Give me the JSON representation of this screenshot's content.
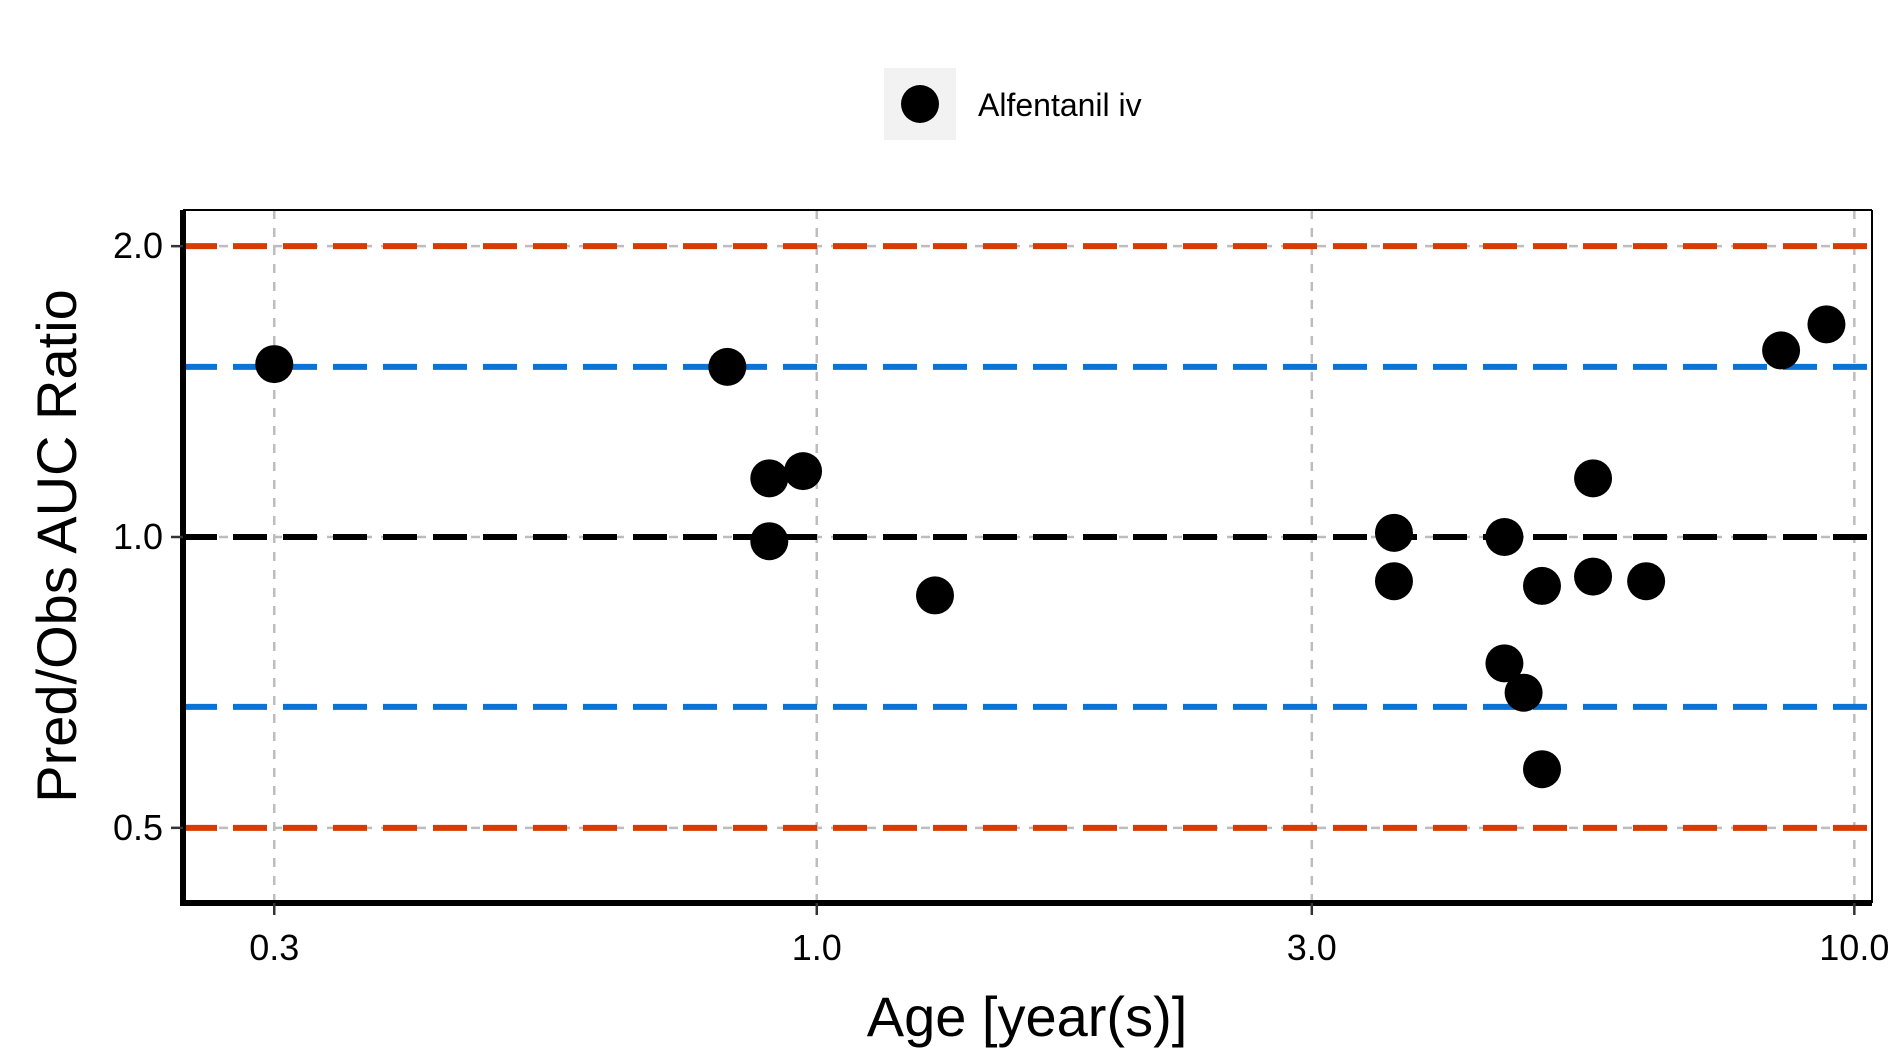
{
  "chart_data": {
    "type": "scatter",
    "title": "",
    "xlabel": "Age [year(s)]",
    "ylabel": "Pred/Obs AUC Ratio",
    "x_scale": "log",
    "y_scale": "log",
    "xlim": [
      0.245,
      10.4
    ],
    "ylim": [
      0.418,
      2.18
    ],
    "x_ticks": [
      0.3,
      1.0,
      3.0,
      10.0
    ],
    "x_tick_labels": [
      "0.3",
      "1.0",
      "3.0",
      "10.0"
    ],
    "y_ticks": [
      0.5,
      1.0,
      2.0
    ],
    "y_tick_labels": [
      "0.5",
      "1.0",
      "2.0"
    ],
    "grid": true,
    "legend_position": "top",
    "reference_lines": [
      {
        "y": 2.0,
        "color": "#d83b01"
      },
      {
        "y": 1.5,
        "color": "#0a74d6"
      },
      {
        "y": 1.0,
        "color": "#000000"
      },
      {
        "y": 0.667,
        "color": "#0a74d6"
      },
      {
        "y": 0.5,
        "color": "#d83b01"
      }
    ],
    "series": [
      {
        "name": "Alfentanil iv",
        "color": "#000000",
        "points": [
          {
            "x": 0.3,
            "y": 1.51
          },
          {
            "x": 0.82,
            "y": 1.5
          },
          {
            "x": 0.9,
            "y": 1.15
          },
          {
            "x": 0.97,
            "y": 1.17
          },
          {
            "x": 0.9,
            "y": 0.99
          },
          {
            "x": 1.3,
            "y": 0.87
          },
          {
            "x": 3.6,
            "y": 1.01
          },
          {
            "x": 3.6,
            "y": 0.9
          },
          {
            "x": 4.6,
            "y": 1.0
          },
          {
            "x": 5.0,
            "y": 0.89
          },
          {
            "x": 5.6,
            "y": 1.15
          },
          {
            "x": 5.6,
            "y": 0.91
          },
          {
            "x": 6.3,
            "y": 0.9
          },
          {
            "x": 4.6,
            "y": 0.74
          },
          {
            "x": 4.8,
            "y": 0.69
          },
          {
            "x": 5.0,
            "y": 0.575
          },
          {
            "x": 8.5,
            "y": 1.56
          },
          {
            "x": 9.4,
            "y": 1.66
          }
        ]
      }
    ]
  }
}
